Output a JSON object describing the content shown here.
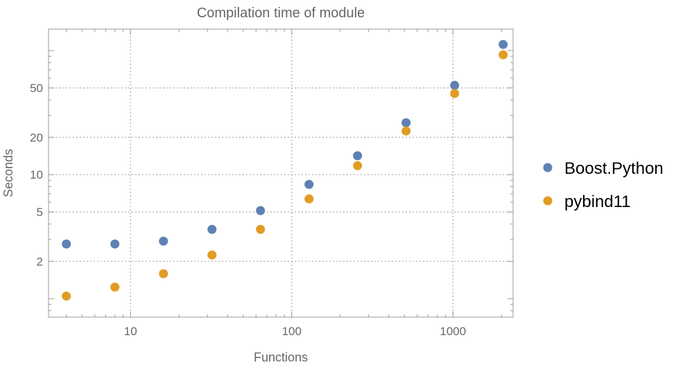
{
  "chart_data": {
    "type": "scatter",
    "title": "Compilation time of module",
    "xlabel": "Functions",
    "ylabel": "Seconds",
    "xscale": "log",
    "yscale": "log",
    "xlim": [
      3.1,
      2360
    ],
    "ylim": [
      0.71,
      149
    ],
    "grid": true,
    "legend_position": "right",
    "x_ticks": [
      10,
      100,
      1000
    ],
    "x_tick_labels": [
      "10",
      "100",
      "1000"
    ],
    "y_ticks": [
      2,
      5,
      10,
      20,
      50
    ],
    "y_tick_labels": [
      "2",
      "5",
      "10",
      "20",
      "50"
    ],
    "x": [
      4,
      8,
      16,
      32,
      64,
      128,
      256,
      512,
      1024,
      2048
    ],
    "series": [
      {
        "name": "Boost.Python",
        "color": "#5e81b5",
        "values": [
          2.76,
          2.76,
          2.91,
          3.62,
          5.13,
          8.35,
          14.2,
          26.2,
          52.5,
          112
        ]
      },
      {
        "name": "pybind11",
        "color": "#e19c24",
        "values": [
          1.05,
          1.24,
          1.59,
          2.25,
          3.62,
          6.37,
          11.8,
          22.5,
          45.1,
          92.5
        ]
      }
    ]
  }
}
